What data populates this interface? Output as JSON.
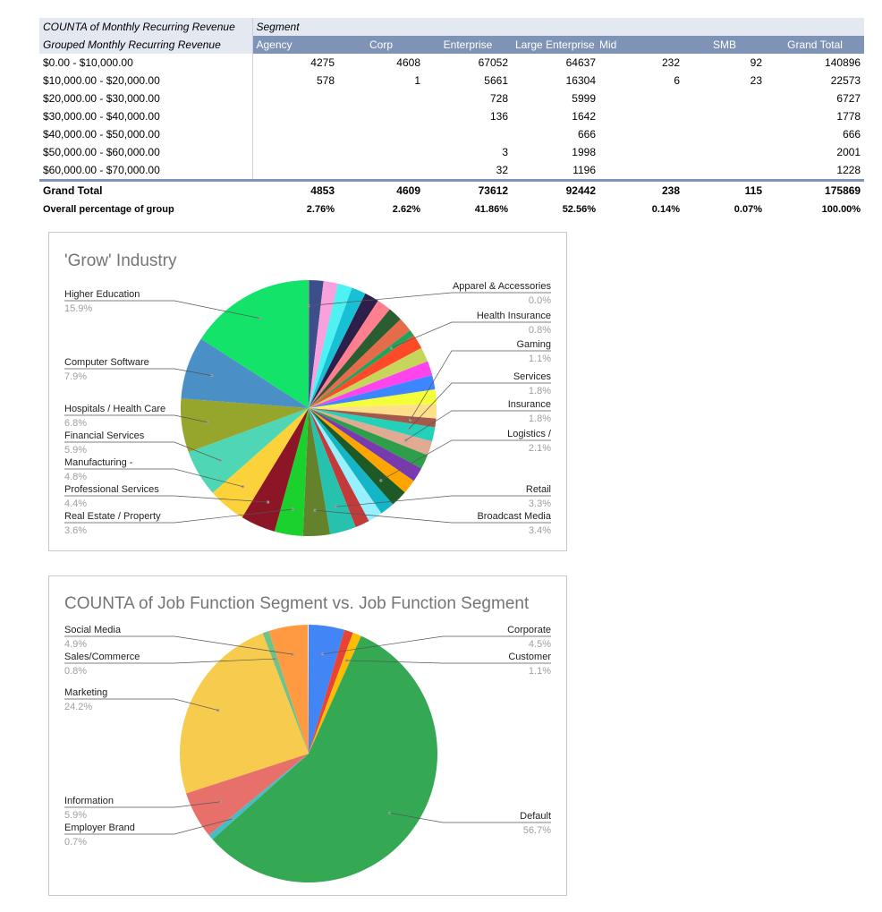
{
  "pivot": {
    "corner_top": "COUNTA of Monthly Recurring Revenue",
    "corner_bottom": "Grouped Monthly Recurring Revenue",
    "segment_header": "Segment",
    "columns": [
      "Agency",
      "Corp",
      "Enterprise",
      "Large Enterprise",
      "Mid",
      "SMB",
      "Grand Total"
    ],
    "rows": [
      {
        "label": "$0.00 - $10,000.00",
        "values": [
          "4275",
          "4608",
          "67052",
          "64637",
          "232",
          "92",
          "140896"
        ]
      },
      {
        "label": "$10,000.00 - $20,000.00",
        "values": [
          "578",
          "1",
          "5661",
          "16304",
          "6",
          "23",
          "22573"
        ]
      },
      {
        "label": "$20,000.00 - $30,000.00",
        "values": [
          "",
          "",
          "728",
          "5999",
          "",
          "",
          "6727"
        ]
      },
      {
        "label": "$30,000.00 - $40,000.00",
        "values": [
          "",
          "",
          "136",
          "1642",
          "",
          "",
          "1778"
        ]
      },
      {
        "label": "$40,000.00 - $50,000.00",
        "values": [
          "",
          "",
          "",
          "666",
          "",
          "",
          "666"
        ]
      },
      {
        "label": "$50,000.00 - $60,000.00",
        "values": [
          "",
          "",
          "3",
          "1998",
          "",
          "",
          "2001"
        ]
      },
      {
        "label": "$60,000.00 - $70,000.00",
        "values": [
          "",
          "",
          "32",
          "1196",
          "",
          "",
          "1228"
        ]
      }
    ],
    "grand_total": {
      "label": "Grand Total",
      "values": [
        "4853",
        "4609",
        "73612",
        "92442",
        "238",
        "115",
        "175869"
      ]
    },
    "percentage": {
      "label": "Overall percentage of group",
      "values": [
        "2.76%",
        "2.62%",
        "41.86%",
        "52.56%",
        "0.14%",
        "0.07%",
        "100.00%"
      ]
    }
  },
  "chart_data": [
    {
      "type": "pie",
      "title": "'Grow' Industry",
      "labeled": [
        {
          "name": "Higher Education",
          "pct": "15.9%",
          "value": 15.9,
          "color": "#14e36a",
          "side": "left"
        },
        {
          "name": "Computer Software",
          "pct": "7.9%",
          "value": 7.9,
          "color": "#4a8fc5",
          "side": "left"
        },
        {
          "name": "Hospitals / Health Care",
          "pct": "6.8%",
          "value": 6.8,
          "color": "#96a62d",
          "side": "left"
        },
        {
          "name": "Financial Services",
          "pct": "5.9%",
          "value": 5.9,
          "color": "#4fd6b4",
          "side": "left"
        },
        {
          "name": "Manufacturing -",
          "pct": "4.8%",
          "value": 4.8,
          "color": "#fcd23a",
          "side": "left"
        },
        {
          "name": "Professional Services",
          "pct": "4.4%",
          "value": 4.4,
          "color": "#8c1626",
          "side": "left"
        },
        {
          "name": "Real Estate / Property",
          "pct": "3.6%",
          "value": 3.6,
          "color": "#1bd12e",
          "side": "left"
        },
        {
          "name": "Broadcast Media",
          "pct": "3.4%",
          "value": 3.4,
          "color": "#64822b",
          "side": "right"
        },
        {
          "name": "Retail",
          "pct": "3.3%",
          "value": 3.3,
          "color": "#27c2ad",
          "side": "right"
        },
        {
          "name": "Logistics /",
          "pct": "2.1%",
          "value": 2.1,
          "color": "#1e5a25",
          "side": "right"
        },
        {
          "name": "Insurance",
          "pct": "1.8%",
          "value": 1.8,
          "color": "#e0aa93",
          "side": "right"
        },
        {
          "name": "Services",
          "pct": "1.8%",
          "value": 1.8,
          "color": "#23d1b8",
          "side": "right"
        },
        {
          "name": "Gaming",
          "pct": "1.1%",
          "value": 1.1,
          "color": "#a35a4a",
          "side": "right"
        },
        {
          "name": "Health Insurance",
          "pct": "0.8%",
          "value": 0.8,
          "color": "#21a35a",
          "side": "right"
        },
        {
          "name": "Apparel & Accessories",
          "pct": "0.0%",
          "value": 0.05,
          "color": "#ff9aa2",
          "side": "right"
        }
      ],
      "other_slice_colors": [
        "#3d4f8a",
        "#f9a1dd",
        "#4ff2f2",
        "#18c0d6",
        "#2e1f4a",
        "#ff7f8e",
        "#2a5e31",
        "#e66b4a",
        "#ff4a2a",
        "#c6d65a",
        "#ff44ee",
        "#3e86ff",
        "#f4ff3a",
        "#ffe08a",
        "#2e9e4a",
        "#7a3aaf",
        "#ffa500",
        "#14b5c7",
        "#98f0ff",
        "#c23a3a"
      ]
    },
    {
      "type": "pie",
      "title": "COUNTA of Job Function Segment vs. Job Function Segment",
      "slices": [
        {
          "name": "Corporate",
          "pct": "4.5%",
          "value": 4.5,
          "color": "#4285f4",
          "side": "right"
        },
        {
          "name": "",
          "pct": "",
          "value": 1.1,
          "color": "#ea4335",
          "side": "right"
        },
        {
          "name": "Customer",
          "pct": "1.1%",
          "value": 1.1,
          "color": "#fbbc04",
          "side": "right"
        },
        {
          "name": "Default",
          "pct": "56.7%",
          "value": 56.7,
          "color": "#34a853",
          "side": "right"
        },
        {
          "name": "Employer Brand",
          "pct": "0.7%",
          "value": 0.7,
          "color": "#46bdc6",
          "side": "left"
        },
        {
          "name": "Information",
          "pct": "5.9%",
          "value": 5.9,
          "color": "#e8706a",
          "side": "left"
        },
        {
          "name": "Marketing",
          "pct": "24.2%",
          "value": 24.2,
          "color": "#f7cb4d",
          "side": "left"
        },
        {
          "name": "Sales/Commerce",
          "pct": "0.8%",
          "value": 0.8,
          "color": "#71c287",
          "side": "left"
        },
        {
          "name": "Social Media",
          "pct": "4.9%",
          "value": 4.9,
          "color": "#ff9a42",
          "side": "left"
        }
      ]
    }
  ]
}
